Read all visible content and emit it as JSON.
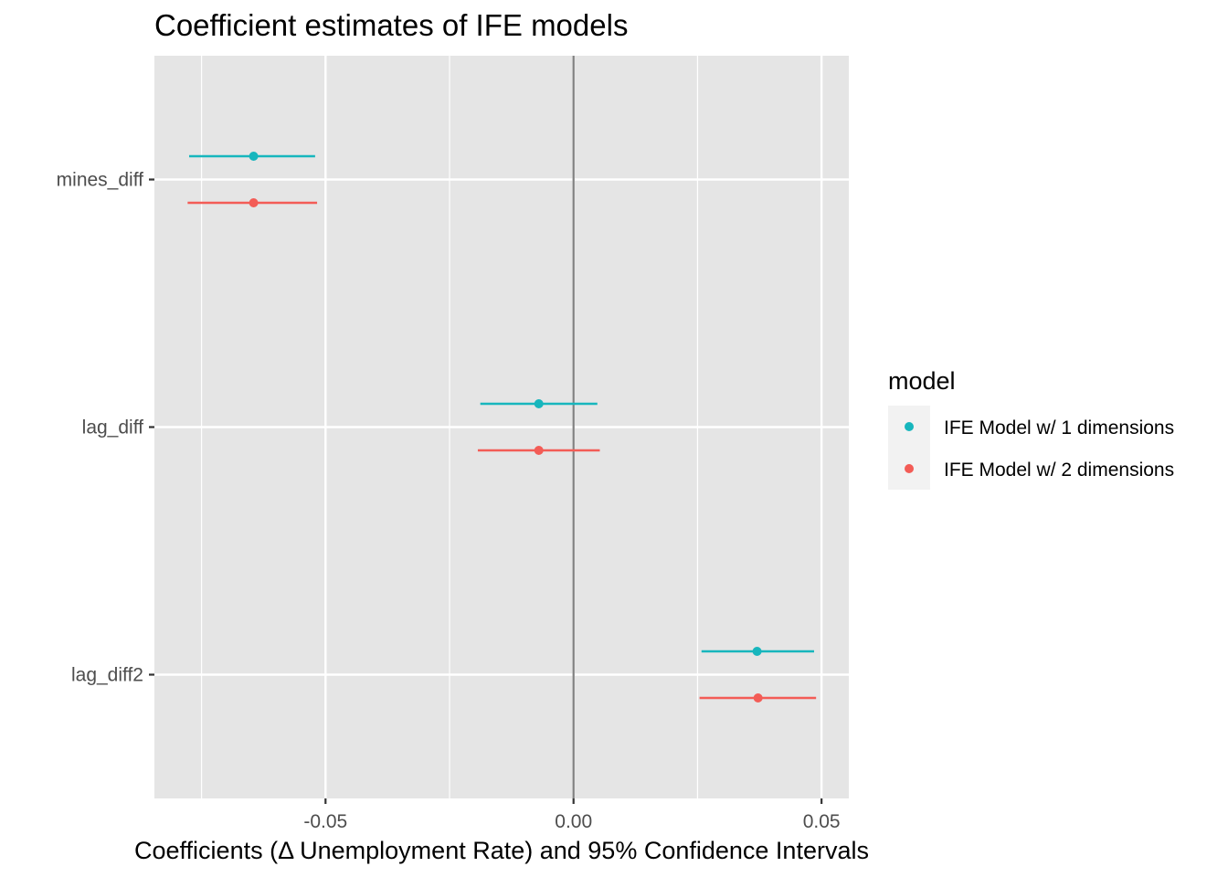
{
  "chart_data": {
    "type": "scatter",
    "title": "Coefficient estimates of IFE models",
    "xlabel": "Coefficients (Δ Unemployment Rate) and 95% Confidence Intervals",
    "ylabel": "",
    "xlim": [
      -0.0845,
      0.0555
    ],
    "x_ticks": [
      -0.05,
      0.0,
      0.05
    ],
    "x_tick_labels": [
      "-0.05",
      "0.00",
      "0.05"
    ],
    "x_minor_ticks": [
      -0.075,
      -0.025,
      0.025
    ],
    "categories": [
      "mines_diff",
      "lag_diff",
      "lag_diff2"
    ],
    "reference_line_x": 0,
    "grid": true,
    "legend": {
      "title": "model",
      "position": "right"
    },
    "series": [
      {
        "name": "IFE Model w/ 1 dimensions",
        "color": "#17b6bd",
        "estimates": [
          -0.0645,
          -0.007,
          0.037
        ],
        "ci_low": [
          -0.0775,
          -0.0188,
          0.0258
        ],
        "ci_high": [
          -0.0521,
          0.0048,
          0.0485
        ]
      },
      {
        "name": "IFE Model w/ 2 dimensions",
        "color": "#f35c56",
        "estimates": [
          -0.0645,
          -0.007,
          0.0372
        ],
        "ci_low": [
          -0.0778,
          -0.0193,
          0.0254
        ],
        "ci_high": [
          -0.0517,
          0.0053,
          0.0489
        ]
      }
    ]
  }
}
